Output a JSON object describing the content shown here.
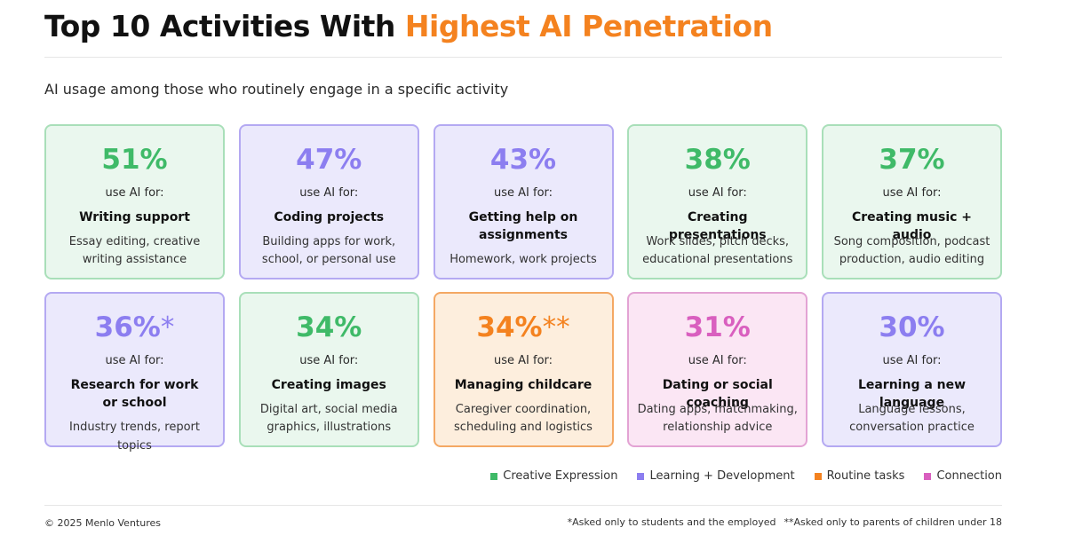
{
  "header": {
    "title_part1": "Top 10 Activities With ",
    "title_part2": "Highest AI Penetration",
    "subtitle": "AI usage among those who routinely engage in a specific activity"
  },
  "chart_data": {
    "type": "table",
    "title": "Top 10 Activities With Highest AI Penetration",
    "subtitle": "AI usage among those who routinely engage in a specific activity",
    "use_label": "use AI for:",
    "categories": [
      {
        "key": "creative",
        "name": "Creative Expression",
        "color": "#3fba68"
      },
      {
        "key": "learning",
        "name": "Learning + Development",
        "color": "#8c7ef0"
      },
      {
        "key": "routine",
        "name": "Routine tasks",
        "color": "#f4821f"
      },
      {
        "key": "connection",
        "name": "Connection",
        "color": "#d95fbf"
      }
    ],
    "items": [
      {
        "value": 51,
        "value_label": "51%",
        "mark": "",
        "activity": "Writing support",
        "description": "Essay editing, creative writing assistance",
        "category": "creative"
      },
      {
        "value": 47,
        "value_label": "47%",
        "mark": "",
        "activity": "Coding projects",
        "description": "Building apps for work, school, or personal use",
        "category": "learning"
      },
      {
        "value": 43,
        "value_label": "43%",
        "mark": "",
        "activity": "Getting help on assignments",
        "description": "Homework, work projects",
        "category": "learning"
      },
      {
        "value": 38,
        "value_label": "38%",
        "mark": "",
        "activity": "Creating presentations",
        "description": "Work slides, pitch decks, educational presentations",
        "category": "creative"
      },
      {
        "value": 37,
        "value_label": "37%",
        "mark": "",
        "activity": "Creating music + audio",
        "description": "Song composition, podcast production, audio editing",
        "category": "creative"
      },
      {
        "value": 36,
        "value_label": "36%",
        "mark": "*",
        "activity": "Research for work or school",
        "description": "Industry trends, report topics",
        "category": "learning"
      },
      {
        "value": 34,
        "value_label": "34%",
        "mark": "",
        "activity": "Creating images",
        "description": "Digital art, social media graphics, illustrations",
        "category": "creative"
      },
      {
        "value": 34,
        "value_label": "34%",
        "mark": "**",
        "activity": "Managing childcare",
        "description": "Caregiver coordination, scheduling and logistics",
        "category": "routine"
      },
      {
        "value": 31,
        "value_label": "31%",
        "mark": "",
        "activity": "Dating or social coaching",
        "description": "Dating apps, matchmaking, relationship advice",
        "category": "connection"
      },
      {
        "value": 30,
        "value_label": "30%",
        "mark": "",
        "activity": "Learning a new language",
        "description": "Language lessons, conversation practice",
        "category": "learning"
      }
    ]
  },
  "cards": [
    {
      "activity_lines": [
        "Writing support"
      ],
      "desc_lines": [
        "Essay editing, creative",
        "writing assistance"
      ]
    },
    {
      "activity_lines": [
        "Coding projects"
      ],
      "desc_lines": [
        "Building apps for work,",
        "school, or personal use"
      ]
    },
    {
      "activity_lines": [
        "Getting help on",
        "assignments"
      ],
      "desc_lines": [
        "Homework, work projects"
      ]
    },
    {
      "activity_lines": [
        "Creating presentations"
      ],
      "desc_lines": [
        "Work slides, pitch decks,",
        "educational presentations"
      ]
    },
    {
      "activity_lines": [
        "Creating music + audio"
      ],
      "desc_lines": [
        "Song composition, podcast",
        "production, audio editing"
      ]
    },
    {
      "activity_lines": [
        "Research for work",
        "or school"
      ],
      "desc_lines": [
        "Industry trends, report topics"
      ]
    },
    {
      "activity_lines": [
        "Creating images"
      ],
      "desc_lines": [
        "Digital art, social media",
        "graphics, illustrations"
      ]
    },
    {
      "activity_lines": [
        "Managing childcare"
      ],
      "desc_lines": [
        "Caregiver coordination,",
        "scheduling and logistics"
      ]
    },
    {
      "activity_lines": [
        "Dating or social coaching"
      ],
      "desc_lines": [
        "Dating apps, matchmaking,",
        "relationship advice"
      ]
    },
    {
      "activity_lines": [
        "Learning a new language"
      ],
      "desc_lines": [
        "Language lessons,",
        "conversation practice"
      ]
    }
  ],
  "footer": {
    "copyright": "© 2025 Menlo Ventures",
    "footnote_1": "*Asked only to students and the employed",
    "footnote_2": "**Asked only to parents of children under 18"
  }
}
